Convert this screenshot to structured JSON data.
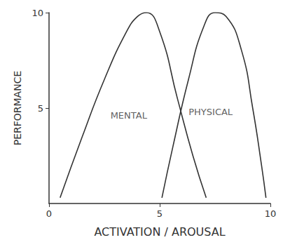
{
  "chart_data": {
    "type": "line",
    "xlabel": "ACTIVATION / AROUSAL",
    "ylabel": "PERFORMANCE",
    "xlim": [
      0,
      10
    ],
    "xticks": [
      0,
      5,
      10
    ],
    "ylim": [
      0,
      10
    ],
    "yticks": [
      5,
      10
    ],
    "grid": false,
    "series": [
      {
        "name": "MENTAL",
        "color": "#333333",
        "x": [
          0.5,
          1.5,
          2.5,
          3.5,
          4.0,
          4.4,
          5.0,
          5.8,
          6.5,
          7.1
        ],
        "values": [
          0.3,
          3.5,
          6.5,
          9.0,
          9.8,
          10,
          9.0,
          5.5,
          2.5,
          0.3
        ]
      },
      {
        "name": "PHYSICAL",
        "color": "#333333",
        "x": [
          5.1,
          5.6,
          6.3,
          7.0,
          7.5,
          8.0,
          8.7,
          9.2,
          9.6,
          9.8
        ],
        "values": [
          0.3,
          3.0,
          6.5,
          9.3,
          10,
          9.8,
          8.0,
          5.0,
          2.0,
          0.3
        ]
      }
    ],
    "annotations": [
      {
        "text": "MENTAL",
        "x": 3.6,
        "y": 4.6
      },
      {
        "text": "PHYSICAL",
        "x": 7.3,
        "y": 4.8
      }
    ]
  }
}
